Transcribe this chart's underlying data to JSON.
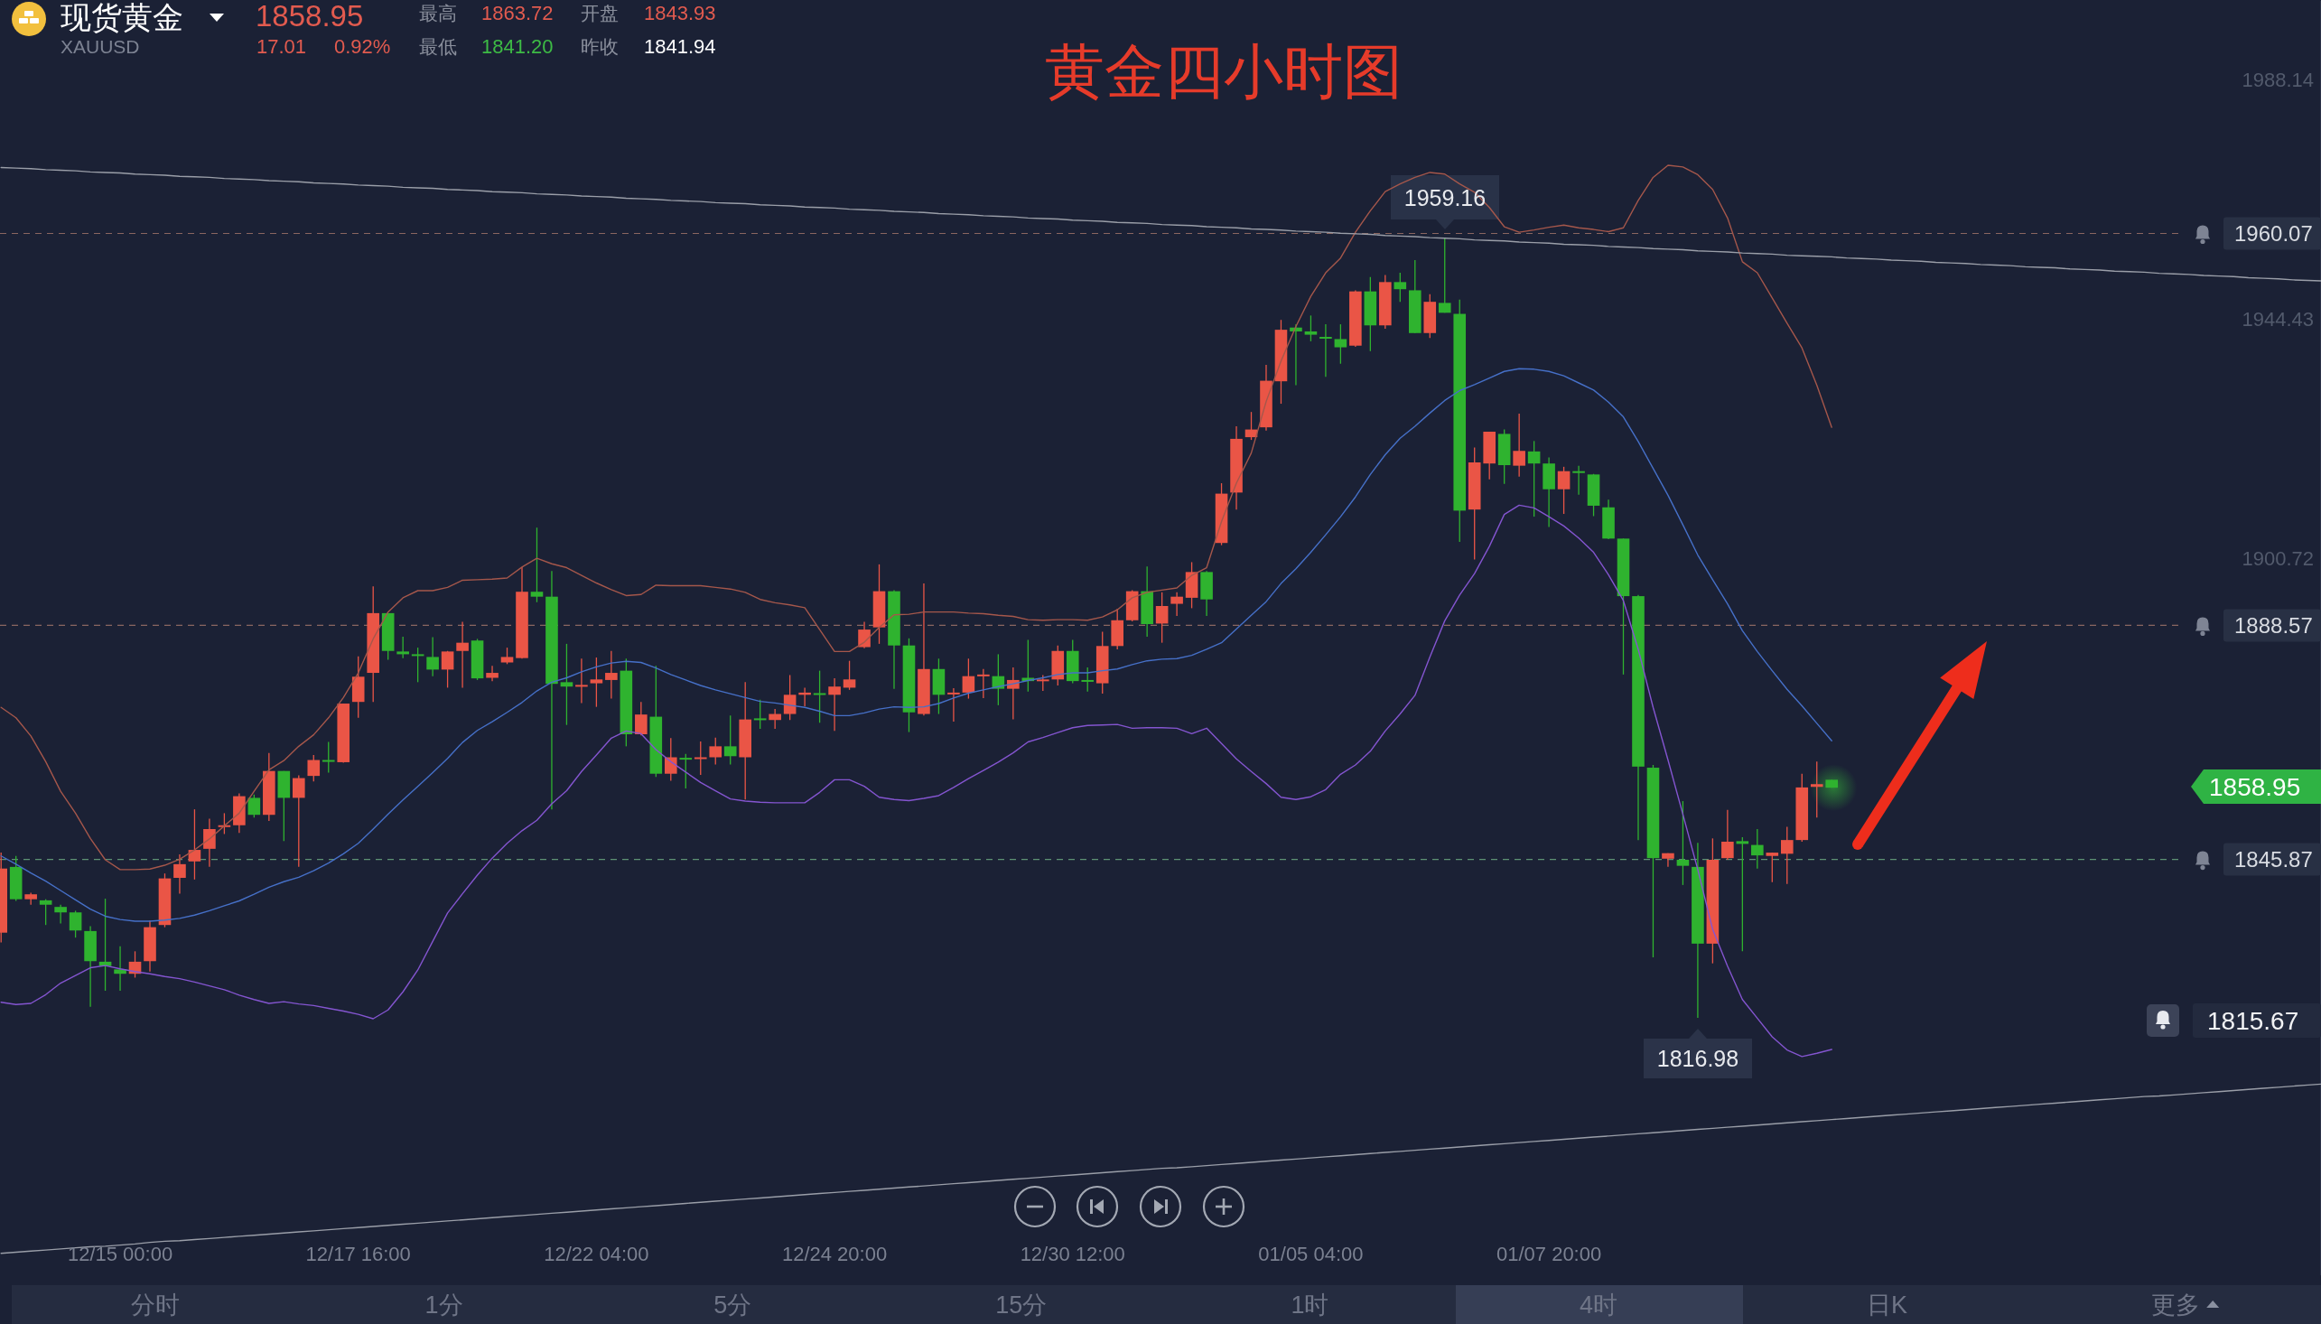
{
  "chart_data": {
    "type": "candlestick",
    "title": "黄金四小时图",
    "categories": [
      null,
      null,
      null,
      null,
      null,
      null,
      null,
      null,
      "12/15 00:00",
      null,
      null,
      null,
      null,
      null,
      null,
      null,
      null,
      null,
      null,
      null,
      null,
      null,
      null,
      null,
      "12/17 16:00",
      null,
      null,
      null,
      null,
      null,
      null,
      null,
      null,
      null,
      null,
      null,
      null,
      null,
      null,
      null,
      "12/22 04:00",
      null,
      null,
      null,
      null,
      null,
      null,
      null,
      null,
      null,
      null,
      null,
      null,
      null,
      null,
      null,
      "12/24 20:00",
      null,
      null,
      null,
      null,
      null,
      null,
      null,
      null,
      null,
      null,
      null,
      null,
      null,
      null,
      null,
      "12/30 12:00",
      null,
      null,
      null,
      null,
      null,
      null,
      null,
      null,
      null,
      null,
      null,
      null,
      null,
      null,
      null,
      "01/05 04:00",
      null,
      null,
      null,
      null,
      null,
      null,
      null,
      null,
      null,
      null,
      null,
      null,
      null,
      null,
      null,
      "01/07 20:00",
      null,
      null,
      null,
      null,
      null,
      null,
      null,
      null,
      null,
      null,
      null,
      null,
      null,
      null,
      null,
      null,
      null,
      null,
      null,
      null,
      null,
      null,
      null,
      null,
      null,
      null,
      null,
      null,
      null,
      null,
      null,
      null,
      null,
      null,
      null,
      null,
      null,
      null,
      null,
      null,
      null,
      null,
      null,
      null,
      null,
      null,
      null,
      null,
      null,
      null,
      null,
      null
    ],
    "ohlc": [
      [
        1832.5,
        1847.1,
        1830.7,
        1844.2
      ],
      [
        1844.5,
        1846.5,
        1838.3,
        1838.6
      ],
      [
        1838.6,
        1839.8,
        1837.6,
        1839.5
      ],
      [
        1838.4,
        1838.6,
        1833.9,
        1837.6
      ],
      [
        1837.2,
        1837.6,
        1834.2,
        1836.2
      ],
      [
        1836.2,
        1836.5,
        1831.6,
        1832.9
      ],
      [
        1832.8,
        1833.7,
        1819.0,
        1827.3
      ],
      [
        1827.2,
        1838.7,
        1821.9,
        1826.4
      ],
      [
        1825.8,
        1830.0,
        1821.9,
        1825.0
      ],
      [
        1825.0,
        1829.1,
        1824.3,
        1827.2
      ],
      [
        1827.3,
        1834.7,
        1825.4,
        1833.5
      ],
      [
        1833.9,
        1843.3,
        1833.5,
        1842.4
      ],
      [
        1842.5,
        1846.8,
        1839.6,
        1845.0
      ],
      [
        1845.5,
        1855.0,
        1842.2,
        1847.6
      ],
      [
        1847.8,
        1853.3,
        1844.5,
        1851.4
      ],
      [
        1851.8,
        1854.3,
        1850.5,
        1852.1
      ],
      [
        1852.1,
        1857.9,
        1850.7,
        1857.4
      ],
      [
        1857.1,
        1857.7,
        1853.5,
        1854.0
      ],
      [
        1854.0,
        1865.3,
        1852.9,
        1862.0
      ],
      [
        1862.0,
        1862.0,
        1849.2,
        1857.1
      ],
      [
        1857.1,
        1861.2,
        1844.5,
        1860.7
      ],
      [
        1861.1,
        1864.9,
        1860.1,
        1864.0
      ],
      [
        1864.0,
        1867.3,
        1861.7,
        1863.7
      ],
      [
        1863.6,
        1874.3,
        1863.5,
        1874.3
      ],
      [
        1874.6,
        1882.9,
        1871.7,
        1879.2
      ],
      [
        1879.9,
        1895.7,
        1874.6,
        1890.8
      ],
      [
        1890.8,
        1890.8,
        1882.3,
        1883.9
      ],
      [
        1883.8,
        1886.5,
        1882.6,
        1883.3
      ],
      [
        1883.3,
        1884.5,
        1878.2,
        1883.0
      ],
      [
        1882.8,
        1886.4,
        1879.3,
        1880.5
      ],
      [
        1880.5,
        1883.9,
        1877.2,
        1883.8
      ],
      [
        1883.9,
        1889.2,
        1877.2,
        1885.4
      ],
      [
        1885.8,
        1886.1,
        1878.6,
        1878.9
      ],
      [
        1879.0,
        1881.2,
        1878.4,
        1879.9
      ],
      [
        1881.8,
        1884.5,
        1881.5,
        1882.8
      ],
      [
        1882.6,
        1899.2,
        1882.5,
        1894.7
      ],
      [
        1894.7,
        1906.4,
        1892.8,
        1893.8
      ],
      [
        1893.8,
        1898.5,
        1855.0,
        1877.9
      ],
      [
        1878.2,
        1885.2,
        1870.4,
        1877.4
      ],
      [
        1877.4,
        1882.5,
        1874.4,
        1877.7
      ],
      [
        1878.0,
        1882.7,
        1873.7,
        1878.7
      ],
      [
        1878.6,
        1883.9,
        1875.2,
        1879.9
      ],
      [
        1880.3,
        1882.5,
        1866.5,
        1868.7
      ],
      [
        1868.7,
        1874.6,
        1868.5,
        1872.3
      ],
      [
        1871.9,
        1881.2,
        1860.9,
        1861.5
      ],
      [
        1861.5,
        1868.0,
        1860.2,
        1864.5
      ],
      [
        1864.4,
        1865.1,
        1858.8,
        1864.1
      ],
      [
        1864.2,
        1867.4,
        1861.3,
        1864.5
      ],
      [
        1864.5,
        1868.1,
        1863.2,
        1866.5
      ],
      [
        1866.5,
        1872.1,
        1863.2,
        1864.7
      ],
      [
        1864.5,
        1878.2,
        1856.8,
        1871.4
      ],
      [
        1871.6,
        1875.0,
        1869.7,
        1871.3
      ],
      [
        1871.3,
        1873.3,
        1869.7,
        1872.4
      ],
      [
        1872.4,
        1879.5,
        1871.3,
        1875.9
      ],
      [
        1875.9,
        1877.2,
        1873.8,
        1876.3
      ],
      [
        1876.2,
        1880.3,
        1870.8,
        1875.9
      ],
      [
        1875.9,
        1878.9,
        1869.3,
        1877.4
      ],
      [
        1877.2,
        1882.1,
        1876.8,
        1878.7
      ],
      [
        1884.6,
        1889.2,
        1884.4,
        1887.8
      ],
      [
        1888.2,
        1899.7,
        1885.2,
        1894.8
      ],
      [
        1894.8,
        1895.0,
        1877.0,
        1884.9
      ],
      [
        1884.9,
        1886.2,
        1869.1,
        1872.7
      ],
      [
        1872.4,
        1896.2,
        1872.1,
        1880.6
      ],
      [
        1880.6,
        1882.5,
        1872.4,
        1875.9
      ],
      [
        1876.0,
        1877.1,
        1871.0,
        1876.3
      ],
      [
        1876.3,
        1882.5,
        1875.2,
        1879.3
      ],
      [
        1879.3,
        1880.6,
        1875.3,
        1879.6
      ],
      [
        1879.3,
        1883.3,
        1874.0,
        1877.0
      ],
      [
        1877.0,
        1880.9,
        1871.4,
        1878.6
      ],
      [
        1879.0,
        1885.9,
        1876.5,
        1878.4
      ],
      [
        1878.4,
        1879.5,
        1876.6,
        1878.7
      ],
      [
        1878.7,
        1884.9,
        1877.6,
        1883.9
      ],
      [
        1883.9,
        1885.9,
        1878.0,
        1878.4
      ],
      [
        1878.6,
        1880.9,
        1876.5,
        1878.3
      ],
      [
        1878.0,
        1887.4,
        1876.1,
        1884.8
      ],
      [
        1884.8,
        1891.6,
        1884.2,
        1889.5
      ],
      [
        1889.5,
        1895.0,
        1889.3,
        1894.8
      ],
      [
        1894.8,
        1899.3,
        1886.5,
        1888.8
      ],
      [
        1888.9,
        1894.6,
        1885.4,
        1892.1
      ],
      [
        1892.5,
        1894.6,
        1890.3,
        1893.8
      ],
      [
        1893.6,
        1900.1,
        1891.7,
        1898.3
      ],
      [
        1898.3,
        1898.5,
        1890.3,
        1893.3
      ],
      [
        1903.6,
        1914.5,
        1903.2,
        1912.6
      ],
      [
        1912.8,
        1924.9,
        1909.7,
        1922.6
      ],
      [
        1922.9,
        1927.5,
        1922.4,
        1924.3
      ],
      [
        1924.7,
        1936.1,
        1924.1,
        1933.2
      ],
      [
        1933.1,
        1944.3,
        1929.0,
        1942.5
      ],
      [
        1942.9,
        1943.5,
        1932.4,
        1942.2
      ],
      [
        1942.2,
        1945.1,
        1940.4,
        1941.6
      ],
      [
        1941.2,
        1943.5,
        1933.9,
        1940.9
      ],
      [
        1940.8,
        1943.5,
        1936.3,
        1939.3
      ],
      [
        1939.6,
        1949.7,
        1939.4,
        1949.5
      ],
      [
        1949.5,
        1952.1,
        1938.6,
        1943.3
      ],
      [
        1943.3,
        1952.5,
        1942.7,
        1951.2
      ],
      [
        1951.2,
        1952.9,
        1947.6,
        1949.9
      ],
      [
        1949.7,
        1955.2,
        1941.9,
        1941.9
      ],
      [
        1941.9,
        1949.0,
        1941.0,
        1947.6
      ],
      [
        1947.4,
        1959.16,
        1945.6,
        1945.6
      ],
      [
        1945.4,
        1948.0,
        1903.8,
        1909.5
      ],
      [
        1909.7,
        1921.0,
        1900.6,
        1918.3
      ],
      [
        1918.1,
        1923.9,
        1915.2,
        1923.9
      ],
      [
        1923.5,
        1924.3,
        1914.4,
        1917.8
      ],
      [
        1917.7,
        1927.2,
        1915.7,
        1920.4
      ],
      [
        1920.3,
        1922.2,
        1908.4,
        1918.1
      ],
      [
        1918.1,
        1919.2,
        1906.5,
        1913.4
      ],
      [
        1913.4,
        1917.5,
        1908.9,
        1916.7
      ],
      [
        1916.7,
        1917.7,
        1912.4,
        1916.4
      ],
      [
        1916.1,
        1916.2,
        1908.5,
        1910.4
      ],
      [
        1910.1,
        1911.5,
        1904.3,
        1904.4
      ],
      [
        1904.4,
        1904.4,
        1879.6,
        1893.9
      ],
      [
        1893.9,
        1894.1,
        1849.4,
        1862.8
      ],
      [
        1862.6,
        1863.1,
        1828.0,
        1846.1
      ],
      [
        1846.0,
        1847.0,
        1844.5,
        1847.0
      ],
      [
        1845.8,
        1856.5,
        1841.2,
        1844.7
      ],
      [
        1844.5,
        1848.9,
        1816.98,
        1830.5
      ],
      [
        1830.5,
        1849.7,
        1826.9,
        1845.8
      ],
      [
        1846.1,
        1854.9,
        1845.8,
        1849.1
      ],
      [
        1849.2,
        1849.9,
        1829.1,
        1848.7
      ],
      [
        1848.5,
        1851.4,
        1844.2,
        1846.6
      ],
      [
        1846.5,
        1847.1,
        1841.7,
        1847.1
      ],
      [
        1846.9,
        1851.8,
        1841.4,
        1849.4
      ],
      [
        1849.4,
        1861.5,
        1849.1,
        1859.0
      ],
      [
        1859.1,
        1863.7,
        1853.5,
        1859.6
      ],
      [
        1860.4,
        1860.4,
        1858.95,
        1858.95
      ],
      null,
      null,
      null,
      null,
      null,
      null,
      null,
      null,
      null,
      null,
      null,
      null,
      null,
      null,
      null,
      null,
      null,
      null,
      null,
      null,
      null,
      null,
      null,
      null,
      null,
      null,
      null,
      null,
      null,
      null,
      null,
      null,
      null
    ],
    "colors": [
      "#ea5546",
      "#2fb32f",
      "#ea5546",
      "#2fb32f",
      "#2fb32f",
      "#2fb32f",
      "#2fb32f",
      "#2fb32f",
      "#2fb32f",
      "#ea5546",
      "#ea5546",
      "#ea5546",
      "#ea5546",
      "#ea5546",
      "#ea5546",
      "#ea5546",
      "#ea5546",
      "#2fb32f",
      "#ea5546",
      "#2fb32f",
      "#ea5546",
      "#ea5546",
      "#2fb32f",
      "#ea5546",
      "#ea5546",
      "#ea5546",
      "#2fb32f",
      "#2fb32f",
      "#2fb32f",
      "#2fb32f",
      "#ea5546",
      "#ea5546",
      "#2fb32f",
      "#ea5546",
      "#ea5546",
      "#ea5546",
      "#2fb32f",
      "#2fb32f",
      "#2fb32f",
      "#ea5546",
      "#ea5546",
      "#ea5546",
      "#2fb32f",
      "#ea5546",
      "#2fb32f",
      "#ea5546",
      "#2fb32f",
      "#ea5546",
      "#ea5546",
      "#2fb32f",
      "#ea5546",
      "#2fb32f",
      "#ea5546",
      "#ea5546",
      "#ea5546",
      "#2fb32f",
      "#ea5546",
      "#ea5546",
      "#ea5546",
      "#ea5546",
      "#2fb32f",
      "#2fb32f",
      "#ea5546",
      "#2fb32f",
      "#ea5546",
      "#ea5546",
      "#ea5546",
      "#2fb32f",
      "#ea5546",
      "#2fb32f",
      "#ea5546",
      "#ea5546",
      "#2fb32f",
      "#2fb32f",
      "#ea5546",
      "#ea5546",
      "#ea5546",
      "#2fb32f",
      "#ea5546",
      "#ea5546",
      "#ea5546",
      "#2fb32f",
      "#ea5546",
      "#ea5546",
      "#ea5546",
      "#ea5546",
      "#ea5546",
      "#2fb32f",
      "#2fb32f",
      "#2fb32f",
      "#2fb32f",
      "#ea5546",
      "#2fb32f",
      "#ea5546",
      "#2fb32f",
      "#2fb32f",
      "#ea5546",
      "#2fb32f",
      "#2fb32f",
      "#ea5546",
      "#ea5546",
      "#2fb32f",
      "#ea5546",
      "#2fb32f",
      "#2fb32f",
      "#ea5546",
      "#2fb32f",
      "#2fb32f",
      "#2fb32f",
      "#2fb32f",
      "#2fb32f",
      "#2fb32f",
      "#ea5546",
      "#2fb32f",
      "#2fb32f",
      "#ea5546",
      "#ea5546",
      "#2fb32f",
      "#2fb32f",
      "#ea5546",
      "#ea5546",
      "#ea5546",
      "#ea5546",
      "#2fb32f",
      null,
      null,
      null,
      null,
      null,
      null,
      null,
      null,
      null,
      null,
      null,
      null,
      null,
      null,
      null,
      null,
      null,
      null,
      null,
      null,
      null,
      null,
      null,
      null,
      null,
      null,
      null,
      null,
      null,
      null,
      null,
      null,
      null
    ],
    "series": [
      {
        "type": "line",
        "color": "#a5574b",
        "values": [
          1873.6,
          1871.7,
          1868.4,
          1863.7,
          1858.3,
          1854.3,
          1849.7,
          1845.8,
          1844.0,
          1844.0,
          1844.1,
          1844.8,
          1845.9,
          1847.6,
          1849.6,
          1852.0,
          1854.3,
          1858.3,
          1862.2,
          1863.9,
          1866.5,
          1868.6,
          1871.7,
          1875.4,
          1879.9,
          1886.1,
          1891.0,
          1893.6,
          1894.9,
          1894.9,
          1895.5,
          1896.8,
          1896.9,
          1897.0,
          1897.2,
          1899.2,
          1900.8,
          1899.8,
          1899.1,
          1897.7,
          1896.3,
          1895.1,
          1894.0,
          1894.2,
          1895.9,
          1895.8,
          1895.8,
          1895.8,
          1895.5,
          1895.2,
          1894.6,
          1893.3,
          1892.7,
          1892.3,
          1891.8,
          1887.8,
          1883.8,
          1883.8,
          1885.5,
          1888.2,
          1890.5,
          1890.6,
          1891.0,
          1891.0,
          1891.0,
          1890.8,
          1890.7,
          1890.4,
          1890.2,
          1889.6,
          1889.5,
          1889.6,
          1889.6,
          1889.5,
          1890.1,
          1891.4,
          1893.6,
          1894.6,
          1895.0,
          1895.4,
          1897.7,
          1899.1,
          1907.5,
          1914.5,
          1920.0,
          1929.4,
          1936.8,
          1943.1,
          1948.6,
          1952.9,
          1955.6,
          1960.3,
          1964.2,
          1967.7,
          1969.1,
          1970.3,
          1971.2,
          1970.9,
          1969.1,
          1967.6,
          1964.8,
          1961.3,
          1960.3,
          1960.7,
          1961.2,
          1961.6,
          1961.1,
          1960.8,
          1960.4,
          1961.1,
          1966.1,
          1970.3,
          1972.5,
          1972.2,
          1970.8,
          1968.1,
          1962.9,
          1954.9,
          1952.9,
          1948.3,
          1943.7,
          1939.2,
          1932.4,
          1924.7,
          null,
          null,
          null,
          null,
          null,
          null,
          null,
          null,
          null,
          null,
          null,
          null,
          null,
          null,
          null,
          null,
          null,
          null,
          null,
          null,
          null,
          null,
          null,
          null,
          null,
          null,
          null,
          null,
          null,
          null,
          null,
          null,
          null
        ]
      },
      {
        "type": "line",
        "color": "#4670c8",
        "values": [
          1846.5,
          1845.0,
          1843.4,
          1841.9,
          1840.2,
          1838.5,
          1836.8,
          1835.5,
          1834.9,
          1834.6,
          1834.6,
          1834.8,
          1835.1,
          1835.7,
          1836.5,
          1837.4,
          1838.3,
          1839.5,
          1840.8,
          1841.8,
          1842.6,
          1843.8,
          1845.2,
          1846.9,
          1848.8,
          1851.4,
          1854.1,
          1856.7,
          1859.2,
          1861.7,
          1864.3,
          1867.2,
          1869.4,
          1871.0,
          1872.7,
          1874.5,
          1876.6,
          1878.2,
          1879.0,
          1880.1,
          1881.0,
          1881.7,
          1882.0,
          1881.8,
          1880.8,
          1879.6,
          1878.6,
          1877.6,
          1876.8,
          1876.1,
          1875.4,
          1874.7,
          1874.4,
          1874.0,
          1873.6,
          1872.9,
          1872.1,
          1872.1,
          1872.6,
          1873.3,
          1873.7,
          1873.6,
          1873.7,
          1874.3,
          1875.3,
          1876.2,
          1876.8,
          1877.4,
          1877.9,
          1878.5,
          1879.0,
          1879.6,
          1879.9,
          1879.9,
          1880.3,
          1880.6,
          1881.4,
          1882.1,
          1882.4,
          1882.5,
          1883.1,
          1884.2,
          1885.4,
          1887.9,
          1890.4,
          1892.9,
          1896.2,
          1898.9,
          1901.9,
          1905.1,
          1908.4,
          1912.0,
          1916.1,
          1919.7,
          1922.7,
          1924.9,
          1927.3,
          1929.6,
          1931.4,
          1932.5,
          1933.7,
          1934.9,
          1935.4,
          1935.3,
          1934.9,
          1934.1,
          1932.8,
          1931.5,
          1929.3,
          1926.6,
          1922.1,
          1917.2,
          1912.3,
          1906.9,
          1901.4,
          1896.9,
          1892.5,
          1887.6,
          1883.8,
          1880.3,
          1876.9,
          1873.9,
          1870.7,
          1867.5,
          null,
          null,
          null,
          null,
          null,
          null,
          null,
          null,
          null,
          null,
          null,
          null,
          null,
          null,
          null,
          null,
          null,
          null,
          null,
          null,
          null,
          null,
          null,
          null,
          null,
          null,
          null,
          null,
          null,
          null,
          null,
          null,
          null
        ]
      },
      {
        "type": "line",
        "color": "#8455d0",
        "values": [
          1819.8,
          1819.4,
          1819.6,
          1821.2,
          1823.3,
          1824.7,
          1826.1,
          1826.5,
          1825.9,
          1825.4,
          1825.0,
          1824.5,
          1824.1,
          1823.5,
          1822.8,
          1822.1,
          1821.1,
          1820.3,
          1819.6,
          1819.9,
          1819.5,
          1819.2,
          1818.7,
          1818.2,
          1817.6,
          1816.8,
          1818.4,
          1821.7,
          1825.7,
          1830.9,
          1836.1,
          1839.6,
          1843.0,
          1846.1,
          1848.8,
          1851.1,
          1853.0,
          1856.0,
          1858.4,
          1861.9,
          1864.9,
          1868.0,
          1869.3,
          1868.8,
          1865.9,
          1863.7,
          1861.8,
          1859.9,
          1858.4,
          1856.9,
          1856.5,
          1856.3,
          1856.2,
          1856.2,
          1856.2,
          1858.1,
          1860.4,
          1860.4,
          1859.2,
          1857.2,
          1856.8,
          1856.6,
          1857.0,
          1857.5,
          1859.0,
          1860.6,
          1862.1,
          1863.6,
          1865.3,
          1867.3,
          1868.1,
          1869.0,
          1869.9,
          1870.3,
          1870.4,
          1870.5,
          1869.8,
          1869.9,
          1869.9,
          1869.8,
          1868.8,
          1869.8,
          1867.0,
          1864.2,
          1861.9,
          1859.7,
          1857.2,
          1856.8,
          1857.3,
          1858.6,
          1861.4,
          1863.1,
          1865.6,
          1869.3,
          1872.4,
          1875.8,
          1882.8,
          1889.4,
          1894.1,
          1898.0,
          1903.0,
          1908.8,
          1910.5,
          1910.0,
          1908.4,
          1906.7,
          1904.5,
          1901.9,
          1897.8,
          1893.1,
          1884.2,
          1873.6,
          1864.0,
          1854.1,
          1844.0,
          1833.1,
          1826.4,
          1820.3,
          1816.9,
          1813.5,
          1811.1,
          1809.9,
          1810.5,
          1811.2,
          null,
          null,
          null,
          null,
          null,
          null,
          null,
          null,
          null,
          null,
          null,
          null,
          null,
          null,
          null,
          null,
          null,
          null,
          null,
          null,
          null,
          null,
          null,
          null,
          null,
          null,
          null,
          null,
          null,
          null,
          null,
          null,
          null
        ]
      },
      {
        "type": "line",
        "color": "#9a9ea8",
        "values": [
          1972.1,
          1972.0,
          1971.9,
          1971.7,
          1971.6,
          1971.5,
          1971.3,
          1971.2,
          1971.1,
          1970.9,
          1970.8,
          1970.7,
          1970.5,
          1970.4,
          1970.3,
          1970.1,
          1970.0,
          1969.9,
          1969.7,
          1969.6,
          1969.5,
          1969.3,
          1969.2,
          1969.1,
          1968.9,
          1968.8,
          1968.7,
          1968.5,
          1968.4,
          1968.3,
          1968.1,
          1968.0,
          1967.9,
          1967.7,
          1967.6,
          1967.5,
          1967.3,
          1967.2,
          1967.1,
          1966.9,
          1966.8,
          1966.7,
          1966.5,
          1966.4,
          1966.3,
          1966.1,
          1966.0,
          1965.9,
          1965.7,
          1965.6,
          1965.5,
          1965.3,
          1965.2,
          1965.1,
          1964.9,
          1964.8,
          1964.7,
          1964.5,
          1964.4,
          1964.3,
          1964.1,
          1964.0,
          1963.9,
          1963.7,
          1963.6,
          1963.5,
          1963.3,
          1963.2,
          1963.1,
          1962.9,
          1962.8,
          1962.7,
          1962.5,
          1962.4,
          1962.3,
          1962.1,
          1962.0,
          1961.9,
          1961.7,
          1961.6,
          1961.5,
          1961.3,
          1961.2,
          1961.1,
          1960.9,
          1960.8,
          1960.7,
          1960.5,
          1960.4,
          1960.3,
          1960.1,
          1960.0,
          1959.9,
          1959.7,
          1959.6,
          1959.5,
          1959.3,
          1959.2,
          1959.1,
          1958.9,
          1958.8,
          1958.7,
          1958.5,
          1958.4,
          1958.3,
          1958.1,
          1958.0,
          1957.9,
          1957.7,
          1957.6,
          1957.5,
          1957.3,
          1957.2,
          1957.1,
          1956.9,
          1956.8,
          1956.7,
          1956.5,
          1956.4,
          1956.3,
          1956.1,
          1956.0,
          1955.9,
          1955.8,
          1955.6,
          1955.5,
          1955.4,
          1955.2,
          1955.1,
          1955.0,
          1954.8,
          1954.7,
          1954.6,
          1954.4,
          1954.3,
          1954.2,
          1954.0,
          1953.9,
          1953.8,
          1953.6,
          1953.5,
          1953.4,
          1953.2,
          1953.1,
          1953.0,
          1952.8,
          1952.7,
          1952.6,
          1952.4,
          1952.3,
          1952.2,
          1952.0,
          1951.9,
          1951.8,
          1951.6,
          1951.5,
          1951.4
        ]
      },
      {
        "type": "line",
        "color": "#9a9ea8",
        "values": [
          1774.0,
          1774.2,
          1774.4,
          1774.6,
          1774.8,
          1775.0,
          1775.2,
          1775.3,
          1775.5,
          1775.7,
          1776.0,
          1776.2,
          1776.3,
          1776.5,
          1776.7,
          1776.9,
          1777.1,
          1777.3,
          1777.5,
          1777.7,
          1777.9,
          1778.1,
          1778.3,
          1778.5,
          1778.7,
          1778.9,
          1779.1,
          1779.3,
          1779.5,
          1779.7,
          1779.9,
          1780.1,
          1780.3,
          1780.5,
          1780.7,
          1780.9,
          1781.1,
          1781.3,
          1781.5,
          1781.7,
          1781.9,
          1782.1,
          1782.3,
          1782.5,
          1782.7,
          1782.9,
          1783.1,
          1783.3,
          1783.5,
          1783.7,
          1783.9,
          1784.1,
          1784.3,
          1784.5,
          1784.7,
          1784.9,
          1785.1,
          1785.3,
          1785.5,
          1785.7,
          1785.9,
          1786.1,
          1786.3,
          1786.5,
          1786.7,
          1786.9,
          1787.1,
          1787.3,
          1787.5,
          1787.7,
          1787.9,
          1788.1,
          1788.3,
          1788.5,
          1788.7,
          1788.9,
          1789.1,
          1789.3,
          1789.5,
          1789.6,
          1789.8,
          1790.0,
          1790.2,
          1790.4,
          1790.6,
          1790.8,
          1791.0,
          1791.2,
          1791.4,
          1791.6,
          1791.8,
          1792.0,
          1792.2,
          1792.4,
          1792.6,
          1792.8,
          1793.0,
          1793.2,
          1793.4,
          1793.6,
          1793.8,
          1794.0,
          1794.2,
          1794.4,
          1794.6,
          1794.8,
          1795.0,
          1795.2,
          1795.4,
          1795.6,
          1795.8,
          1796.0,
          1796.2,
          1796.4,
          1796.6,
          1796.8,
          1797.0,
          1797.2,
          1797.4,
          1797.6,
          1797.8,
          1798.0,
          1798.2,
          1798.4,
          1798.6,
          1798.8,
          1799.0,
          1799.2,
          1799.4,
          1799.6,
          1799.8,
          1800.0,
          1800.2,
          1800.4,
          1800.6,
          1800.8,
          1801.0,
          1801.2,
          1801.4,
          1801.6,
          1801.8,
          1802.0,
          1802.2,
          1802.4,
          1802.6,
          1802.7,
          1802.9,
          1803.1,
          1803.3,
          1803.5,
          1803.7,
          1803.9,
          1804.1,
          1804.3,
          1804.5,
          1804.7,
          1804.9
        ]
      }
    ],
    "ylim": [
      1770,
      2002.5
    ],
    "yticks": [
      1988.14,
      1944.43,
      1900.72
    ],
    "ref_lines": [
      {
        "axis": "y",
        "value": 1960.07,
        "label": "1960.07",
        "color": "#8a6660",
        "line_style": "dashed"
      },
      {
        "axis": "y",
        "value": 1888.57,
        "label": "1888.57",
        "color": "#8a6660",
        "line_style": "dashed"
      },
      {
        "axis": "y",
        "value": 1845.87,
        "label": "1845.87",
        "color": "#5e9274",
        "line_style": "dashed"
      }
    ],
    "annotations": [
      "现货黄金",
      "XAUUSD",
      "1858.95",
      "17.01",
      "0.92%",
      "最高",
      "1863.72",
      "开盘",
      "1843.93",
      "最低",
      "1841.20",
      "昨收",
      "1841.94",
      "1815.67",
      "1858.95",
      "1816.98",
      "分时",
      "1分",
      "5分",
      "15分",
      "1时",
      "4时",
      "日K",
      "更多",
      {
        "text": "1959.16",
        "y": 1959.16
      }
    ]
  }
}
